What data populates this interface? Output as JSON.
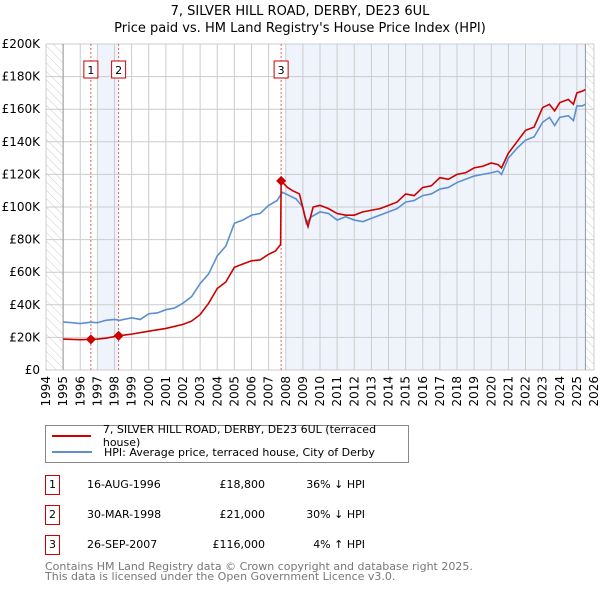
{
  "title": "7, SILVER HILL ROAD, DERBY, DE23 6UL",
  "subtitle": "Price paid vs. HM Land Registry's House Price Index (HPI)",
  "legend": {
    "items": [
      {
        "label": "7, SILVER HILL ROAD, DERBY, DE23 6UL (terraced house)",
        "color": "#cc0000"
      },
      {
        "label": "HPI: Average price, terraced house, City of Derby",
        "color": "#5b8fd0"
      }
    ]
  },
  "transactions": [
    {
      "num": "1",
      "date": "16-AUG-1996",
      "price": "£18,800",
      "hpi": "36% ↓ HPI"
    },
    {
      "num": "2",
      "date": "30-MAR-1998",
      "price": "£21,000",
      "hpi": "30% ↓ HPI"
    },
    {
      "num": "3",
      "date": "26-SEP-2007",
      "price": "£116,000",
      "hpi": "4% ↑ HPI"
    }
  ],
  "footer": {
    "line1": "Contains HM Land Registry data © Crown copyright and database right 2025.",
    "line2": "This data is licensed under the Open Government Licence v3.0."
  },
  "chart_data": {
    "type": "line",
    "xlim": [
      1994,
      2026
    ],
    "ylim": [
      0,
      200000
    ],
    "x_ticks": [
      "1994",
      "1995",
      "1996",
      "1997",
      "1998",
      "1999",
      "2000",
      "2001",
      "2002",
      "2003",
      "2004",
      "2005",
      "2006",
      "2007",
      "2008",
      "2009",
      "2010",
      "2011",
      "2012",
      "2013",
      "2014",
      "2015",
      "2016",
      "2017",
      "2018",
      "2019",
      "2020",
      "2021",
      "2022",
      "2023",
      "2024",
      "2025",
      "2026"
    ],
    "y_ticks": [
      {
        "v": 0,
        "label": "£0"
      },
      {
        "v": 20000,
        "label": "£20K"
      },
      {
        "v": 40000,
        "label": "£40K"
      },
      {
        "v": 60000,
        "label": "£60K"
      },
      {
        "v": 80000,
        "label": "£80K"
      },
      {
        "v": 100000,
        "label": "£100K"
      },
      {
        "v": 120000,
        "label": "£120K"
      },
      {
        "v": 140000,
        "label": "£140K"
      },
      {
        "v": 160000,
        "label": "£160K"
      },
      {
        "v": 180000,
        "label": "£180K"
      },
      {
        "v": 200000,
        "label": "£200K"
      }
    ],
    "hatched_ranges": [
      [
        1994,
        1995
      ],
      [
        2025.5,
        2026
      ]
    ],
    "shaded_ranges": [
      [
        1997.0,
        1998.25
      ],
      [
        2008.0,
        2025.5
      ]
    ],
    "markers": [
      {
        "label": "1",
        "x": 1996.62,
        "y": 18800
      },
      {
        "label": "2",
        "x": 1998.24,
        "y": 21000
      },
      {
        "label": "3",
        "x": 2007.73,
        "y": 116000
      }
    ],
    "series": [
      {
        "name": "7, SILVER HILL ROAD, DERBY, DE23 6UL (terraced house)",
        "color": "#cc0000",
        "x": [
          1995,
          1996,
          1996.62,
          1997,
          1997.5,
          1998.24,
          1999,
          2000,
          2001,
          2002,
          2002.5,
          2003,
          2003.5,
          2004,
          2004.5,
          2005,
          2005.5,
          2006,
          2006.5,
          2007,
          2007.4,
          2007.7,
          2007.73,
          2008.1,
          2008.4,
          2008.8,
          2009.1,
          2009.3,
          2009.6,
          2010,
          2010.5,
          2011,
          2011.5,
          2012,
          2012.5,
          2013,
          2013.5,
          2014,
          2014.5,
          2015,
          2015.5,
          2016,
          2016.5,
          2017,
          2017.5,
          2018,
          2018.5,
          2019,
          2019.5,
          2020,
          2020.4,
          2020.6,
          2021,
          2021.5,
          2022,
          2022.5,
          2023,
          2023.4,
          2023.7,
          2024,
          2024.5,
          2024.8,
          2025,
          2025.3,
          2025.5
        ],
        "y": [
          19000,
          18600,
          18800,
          19000,
          19500,
          21000,
          22000,
          23800,
          25500,
          28000,
          30000,
          34000,
          41000,
          50000,
          54000,
          63000,
          65000,
          67000,
          67500,
          71000,
          73000,
          77000,
          116000,
          112000,
          110000,
          108000,
          95000,
          88000,
          100000,
          101000,
          99000,
          96000,
          95000,
          95000,
          97000,
          98000,
          99000,
          101000,
          103000,
          108000,
          107000,
          112000,
          113000,
          118000,
          117000,
          120000,
          121000,
          124000,
          125000,
          127000,
          126000,
          124000,
          133000,
          140000,
          147000,
          149000,
          161000,
          163000,
          159000,
          164000,
          166000,
          163000,
          170000,
          171000,
          172000
        ]
      },
      {
        "name": "HPI: Average price, terraced house, City of Derby",
        "color": "#5b8fd0",
        "x": [
          1995,
          1995.5,
          1996,
          1996.6,
          1997,
          1997.5,
          1998,
          1998.3,
          1999,
          1999.5,
          2000,
          2000.5,
          2001,
          2001.5,
          2002,
          2002.5,
          2003,
          2003.5,
          2004,
          2004.5,
          2005,
          2005.5,
          2006,
          2006.5,
          2007,
          2007.5,
          2007.8,
          2008.2,
          2008.6,
          2009,
          2009.2,
          2009.5,
          2010,
          2010.5,
          2011,
          2011.5,
          2012,
          2012.5,
          2013,
          2013.5,
          2014,
          2014.5,
          2015,
          2015.5,
          2016,
          2016.5,
          2017,
          2017.5,
          2018,
          2018.5,
          2019,
          2019.5,
          2020,
          2020.4,
          2020.6,
          2021,
          2021.5,
          2022,
          2022.5,
          2023,
          2023.4,
          2023.7,
          2024,
          2024.5,
          2024.8,
          2025,
          2025.3,
          2025.5
        ],
        "y": [
          29500,
          29000,
          28500,
          29300,
          29000,
          30500,
          31000,
          30500,
          32000,
          31000,
          34500,
          35000,
          37000,
          38000,
          41000,
          45000,
          53000,
          59000,
          70000,
          76000,
          90000,
          92000,
          95000,
          96000,
          101000,
          104000,
          109000,
          107000,
          105000,
          100000,
          90000,
          94000,
          97000,
          96000,
          92000,
          94000,
          92000,
          91000,
          93000,
          95000,
          97000,
          99000,
          103000,
          104000,
          107000,
          108000,
          111000,
          112000,
          115000,
          117000,
          119000,
          120000,
          121000,
          122000,
          120000,
          130000,
          136000,
          141000,
          143000,
          152000,
          155000,
          150000,
          155000,
          156000,
          153000,
          162000,
          162000,
          163000
        ]
      }
    ]
  }
}
